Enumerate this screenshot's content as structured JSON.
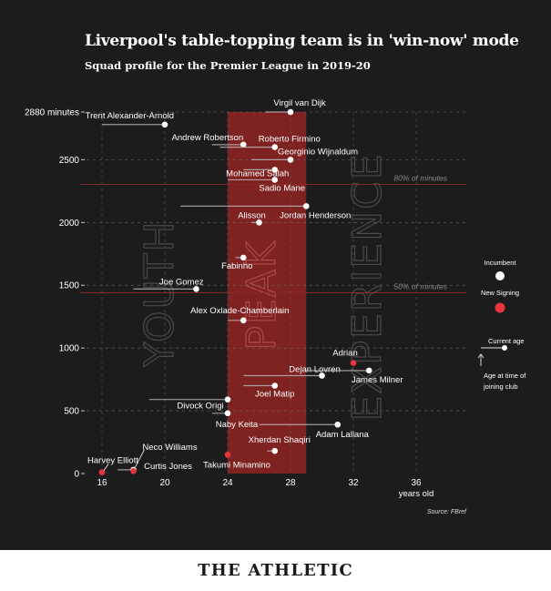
{
  "chart_data": {
    "type": "scatter",
    "title": "Liverpool's table-topping team is in 'win-now' mode",
    "subtitle": "Squad profile for the Premier League in 2019-20",
    "xlabel": "years old",
    "ylabel": "",
    "xlim": [
      15,
      41
    ],
    "ylim": [
      0,
      2880
    ],
    "x_ticks": [
      16,
      20,
      24,
      28,
      32,
      36
    ],
    "y_ticks": [
      {
        "value": 0,
        "label": "0"
      },
      {
        "value": 500,
        "label": "500"
      },
      {
        "value": 1000,
        "label": "1000"
      },
      {
        "value": 1500,
        "label": "1500"
      },
      {
        "value": 2000,
        "label": "2000"
      },
      {
        "value": 2500,
        "label": "2500"
      },
      {
        "value": 2880,
        "label": "2880 minutes"
      }
    ],
    "peak_band": {
      "from": 24,
      "to": 29
    },
    "zone_labels": {
      "youth": "YOUTH",
      "peak": "PEAK",
      "experience": "EXPERIENCE"
    },
    "reference_lines": [
      {
        "value": 2304,
        "label": "80% of minutes"
      },
      {
        "value": 1440,
        "label": "50% of minutes"
      }
    ],
    "players": [
      {
        "name": "Virgil van Dijk",
        "age": 28.0,
        "joined_age": 26.4,
        "minutes": 2880,
        "new": false
      },
      {
        "name": "Trent Alexander-Arnold",
        "age": 20.0,
        "joined_age": 16.0,
        "minutes": 2780,
        "new": false
      },
      {
        "name": "Andrew Robertson",
        "age": 25.0,
        "joined_age": 23.0,
        "minutes": 2620,
        "new": false
      },
      {
        "name": "Roberto Firmino",
        "age": 27.0,
        "joined_age": 23.5,
        "minutes": 2600,
        "new": false
      },
      {
        "name": "Georginio Wijnaldum",
        "age": 28.0,
        "joined_age": 25.5,
        "minutes": 2500,
        "new": false
      },
      {
        "name": "Mohamed Salah",
        "age": 27.0,
        "joined_age": 25.0,
        "minutes": 2420,
        "new": false
      },
      {
        "name": "Sadio Mane",
        "age": 27.0,
        "joined_age": 24.0,
        "minutes": 2340,
        "new": false
      },
      {
        "name": "Jordan Henderson",
        "age": 29.0,
        "joined_age": 21.0,
        "minutes": 2130,
        "new": false
      },
      {
        "name": "Alisson",
        "age": 26.0,
        "joined_age": 25.5,
        "minutes": 2000,
        "new": false
      },
      {
        "name": "Fabinho",
        "age": 25.0,
        "joined_age": 24.5,
        "minutes": 1720,
        "new": false
      },
      {
        "name": "Joe Gomez",
        "age": 22.0,
        "joined_age": 18.0,
        "minutes": 1470,
        "new": false
      },
      {
        "name": "Alex Oxlade-Chamberlain",
        "age": 25.0,
        "joined_age": 24.0,
        "minutes": 1220,
        "new": false
      },
      {
        "name": "Adrian",
        "age": 32.0,
        "joined_age": 32.0,
        "minutes": 880,
        "new": true
      },
      {
        "name": "Dejan Lovren",
        "age": 30.0,
        "joined_age": 25.0,
        "minutes": 780,
        "new": false
      },
      {
        "name": "James Milner",
        "age": 33.0,
        "joined_age": 29.0,
        "minutes": 820,
        "new": false
      },
      {
        "name": "Joel Matip",
        "age": 27.0,
        "joined_age": 25.0,
        "minutes": 700,
        "new": false
      },
      {
        "name": "Divock Origi",
        "age": 24.0,
        "joined_age": 19.0,
        "minutes": 590,
        "new": false
      },
      {
        "name": "Naby Keita",
        "age": 24.0,
        "joined_age": 23.0,
        "minutes": 480,
        "new": false
      },
      {
        "name": "Adam Lallana",
        "age": 31.0,
        "joined_age": 26.0,
        "minutes": 390,
        "new": false
      },
      {
        "name": "Xherdan Shaqiri",
        "age": 27.0,
        "joined_age": 26.5,
        "minutes": 180,
        "new": false
      },
      {
        "name": "Takumi Minamino",
        "age": 24.0,
        "joined_age": 24.0,
        "minutes": 150,
        "new": true
      },
      {
        "name": "Neco Williams",
        "age": 18.0,
        "joined_age": 17.0,
        "minutes": 30,
        "new": false
      },
      {
        "name": "Curtis Jones",
        "age": 18.0,
        "joined_age": 18.0,
        "minutes": 20,
        "new": true
      },
      {
        "name": "Harvey Elliott",
        "age": 16.0,
        "joined_age": 16.0,
        "minutes": 10,
        "new": true
      }
    ],
    "legend": {
      "incumbent": "Incumbent",
      "new_signing": "New Signing",
      "current_age": "Current age",
      "joined_age": "Age at time of joining club"
    },
    "source": "Source: FBref"
  },
  "colors": {
    "background": "#1c1c1c",
    "peak_band": "#8b2323",
    "new_signing": "#e8343c",
    "incumbent": "#ffffff",
    "reference_line": "#8c2a2a"
  },
  "footer": {
    "brand": "THE ATHLETIC"
  }
}
